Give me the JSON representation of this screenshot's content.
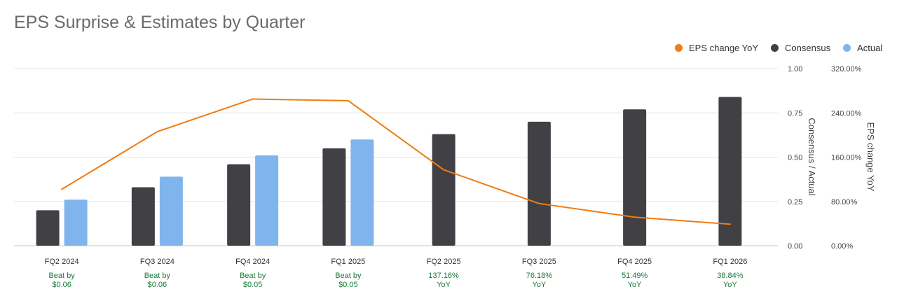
{
  "chart_data": {
    "type": "bar",
    "title": "EPS Surprise & Estimates by Quarter",
    "categories": [
      "FQ2 2024",
      "FQ3 2024",
      "FQ4 2024",
      "FQ1 2025",
      "FQ2 2025",
      "FQ3 2025",
      "FQ4 2025",
      "FQ1 2026"
    ],
    "series": [
      {
        "name": "Consensus",
        "type": "bar",
        "axis": "left",
        "color": "#414045",
        "values": [
          0.2,
          0.33,
          0.46,
          0.55,
          0.63,
          0.7,
          0.77,
          0.84
        ]
      },
      {
        "name": "Actual",
        "type": "bar",
        "axis": "left",
        "color": "#7fb5ec",
        "values": [
          0.26,
          0.39,
          0.51,
          0.6,
          null,
          null,
          null,
          null
        ]
      },
      {
        "name": "EPS change YoY",
        "type": "line",
        "axis": "right",
        "color": "#f07c14",
        "values": [
          102.0,
          206.0,
          265.0,
          262.0,
          137.16,
          76.18,
          51.49,
          38.84
        ]
      }
    ],
    "y_left": {
      "label": "Consensus / Actual",
      "ylim": [
        0,
        1.0
      ],
      "ticks": [
        0,
        0.25,
        0.5,
        0.75,
        1.0
      ],
      "tick_labels": [
        "0.00",
        "0.25",
        "0.50",
        "0.75",
        "1.00"
      ]
    },
    "y_right": {
      "label": "EPS change YoY",
      "ylim": [
        0,
        320
      ],
      "ticks": [
        0,
        80,
        160,
        240,
        320
      ],
      "tick_labels": [
        "0.00%",
        "80.00%",
        "160.00%",
        "240.00%",
        "320.00%"
      ]
    },
    "annotations": [
      [
        "Beat by",
        "$0.06"
      ],
      [
        "Beat by",
        "$0.06"
      ],
      [
        "Beat by",
        "$0.05"
      ],
      [
        "Beat by",
        "$0.05"
      ],
      [
        "137.16%",
        "YoY"
      ],
      [
        "76.18%",
        "YoY"
      ],
      [
        "51.49%",
        "YoY"
      ],
      [
        "38.84%",
        "YoY"
      ]
    ],
    "annotation_color": "#1a7a3a",
    "grid": true,
    "legend_position": "top-right"
  }
}
